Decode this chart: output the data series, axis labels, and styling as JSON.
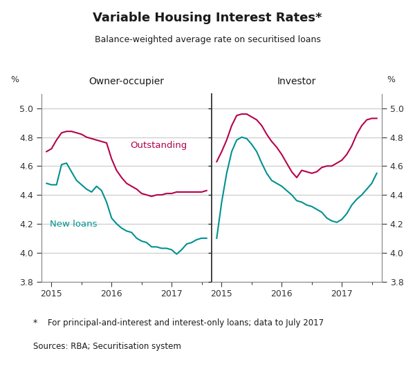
{
  "title": "Variable Housing Interest Rates*",
  "subtitle": "Balance-weighted average rate on securitised loans",
  "footnote_star": "*",
  "footnote_text": "    For principal-and-interest and interest-only loans; data to July 2017",
  "source": "Sources: RBA; Securitisation system",
  "left_panel_title": "Owner-occupier",
  "right_panel_title": "Investor",
  "ylabel_left": "%",
  "ylabel_right": "%",
  "ylim": [
    3.8,
    5.1
  ],
  "yticks": [
    3.8,
    4.0,
    4.2,
    4.4,
    4.6,
    4.8,
    5.0
  ],
  "outstanding_color": "#b5004b",
  "new_loans_color": "#009090",
  "background_color": "#ffffff",
  "grid_color": "#c8c8c8",
  "owner_outstanding_x": [
    2014.917,
    2015.0,
    2015.083,
    2015.167,
    2015.25,
    2015.333,
    2015.417,
    2015.5,
    2015.583,
    2015.667,
    2015.75,
    2015.833,
    2015.917,
    2016.0,
    2016.083,
    2016.167,
    2016.25,
    2016.333,
    2016.417,
    2016.5,
    2016.583,
    2016.667,
    2016.75,
    2016.833,
    2016.917,
    2017.0,
    2017.083,
    2017.167,
    2017.25,
    2017.333,
    2017.417,
    2017.5,
    2017.583
  ],
  "owner_outstanding_y": [
    4.7,
    4.72,
    4.78,
    4.83,
    4.84,
    4.84,
    4.83,
    4.82,
    4.8,
    4.79,
    4.78,
    4.77,
    4.76,
    4.65,
    4.57,
    4.52,
    4.48,
    4.46,
    4.44,
    4.41,
    4.4,
    4.39,
    4.4,
    4.4,
    4.41,
    4.41,
    4.42,
    4.42,
    4.42,
    4.42,
    4.42,
    4.42,
    4.43
  ],
  "owner_new_x": [
    2014.917,
    2015.0,
    2015.083,
    2015.167,
    2015.25,
    2015.333,
    2015.417,
    2015.5,
    2015.583,
    2015.667,
    2015.75,
    2015.833,
    2015.917,
    2016.0,
    2016.083,
    2016.167,
    2016.25,
    2016.333,
    2016.417,
    2016.5,
    2016.583,
    2016.667,
    2016.75,
    2016.833,
    2016.917,
    2017.0,
    2017.083,
    2017.167,
    2017.25,
    2017.333,
    2017.417,
    2017.5,
    2017.583
  ],
  "owner_new_y": [
    4.48,
    4.47,
    4.47,
    4.61,
    4.62,
    4.56,
    4.5,
    4.47,
    4.44,
    4.42,
    4.46,
    4.43,
    4.35,
    4.24,
    4.2,
    4.17,
    4.15,
    4.14,
    4.1,
    4.08,
    4.07,
    4.04,
    4.04,
    4.03,
    4.03,
    4.02,
    3.99,
    4.02,
    4.06,
    4.07,
    4.09,
    4.1,
    4.1
  ],
  "investor_outstanding_x": [
    2014.917,
    2015.0,
    2015.083,
    2015.167,
    2015.25,
    2015.333,
    2015.417,
    2015.5,
    2015.583,
    2015.667,
    2015.75,
    2015.833,
    2015.917,
    2016.0,
    2016.083,
    2016.167,
    2016.25,
    2016.333,
    2016.417,
    2016.5,
    2016.583,
    2016.667,
    2016.75,
    2016.833,
    2016.917,
    2017.0,
    2017.083,
    2017.167,
    2017.25,
    2017.333,
    2017.417,
    2017.5,
    2017.583
  ],
  "investor_outstanding_y": [
    4.63,
    4.7,
    4.78,
    4.88,
    4.95,
    4.96,
    4.96,
    4.94,
    4.92,
    4.88,
    4.82,
    4.77,
    4.73,
    4.68,
    4.62,
    4.56,
    4.52,
    4.57,
    4.56,
    4.55,
    4.56,
    4.59,
    4.6,
    4.6,
    4.62,
    4.64,
    4.68,
    4.74,
    4.82,
    4.88,
    4.92,
    4.93,
    4.93
  ],
  "investor_new_x": [
    2014.917,
    2015.0,
    2015.083,
    2015.167,
    2015.25,
    2015.333,
    2015.417,
    2015.5,
    2015.583,
    2015.667,
    2015.75,
    2015.833,
    2015.917,
    2016.0,
    2016.083,
    2016.167,
    2016.25,
    2016.333,
    2016.417,
    2016.5,
    2016.583,
    2016.667,
    2016.75,
    2016.833,
    2016.917,
    2017.0,
    2017.083,
    2017.167,
    2017.25,
    2017.333,
    2017.417,
    2017.5,
    2017.583
  ],
  "investor_new_y": [
    4.1,
    4.35,
    4.55,
    4.7,
    4.78,
    4.8,
    4.79,
    4.75,
    4.7,
    4.62,
    4.55,
    4.5,
    4.48,
    4.46,
    4.43,
    4.4,
    4.36,
    4.35,
    4.33,
    4.32,
    4.3,
    4.28,
    4.24,
    4.22,
    4.21,
    4.23,
    4.27,
    4.33,
    4.37,
    4.4,
    4.44,
    4.48,
    4.55
  ],
  "xlim": [
    2014.833,
    2017.667
  ],
  "xticks": [
    2015,
    2016,
    2017
  ],
  "xticklabels": [
    "2015",
    "2016",
    "2017"
  ]
}
